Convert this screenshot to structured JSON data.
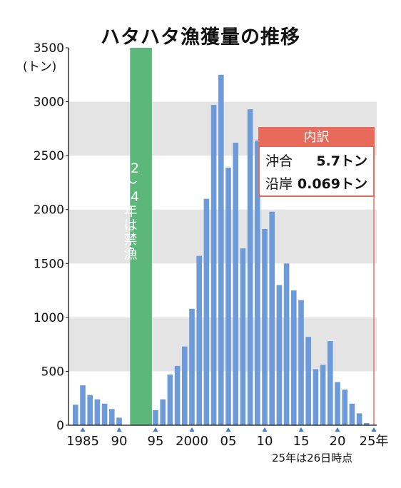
{
  "title": "ハタハタ漁獲量の推移",
  "y_unit": "(トン)",
  "note": "25年は26日時点",
  "ban": {
    "lines": [
      "92",
      "〜",
      "94",
      "年",
      "は",
      "禁",
      "漁"
    ],
    "color": "#5cb87a"
  },
  "breakdown": {
    "header": "内訳",
    "rows": [
      {
        "label": "沖合",
        "value": "5.7トン"
      },
      {
        "label": "沿岸",
        "value": "0.069トン"
      }
    ],
    "color": "#e86a5a"
  },
  "colors": {
    "bar": "#6d9ad8",
    "band": "#e4e4e4",
    "tick_marker": "#3a7bd5"
  },
  "chart_data": {
    "type": "bar",
    "title": "ハタハタ漁獲量の推移",
    "ylabel": "(トン)",
    "ylim": [
      0,
      3500
    ],
    "yticks": [
      0,
      500,
      1000,
      1500,
      2000,
      2500,
      3000,
      3500
    ],
    "x": [
      1984,
      1985,
      1986,
      1987,
      1988,
      1989,
      1990,
      1991,
      1992,
      1993,
      1994,
      1995,
      1996,
      1997,
      1998,
      1999,
      2000,
      2001,
      2002,
      2003,
      2004,
      2005,
      2006,
      2007,
      2008,
      2009,
      2010,
      2011,
      2012,
      2013,
      2014,
      2015,
      2016,
      2017,
      2018,
      2019,
      2020,
      2021,
      2022,
      2023,
      2024,
      2025
    ],
    "values": [
      190,
      370,
      280,
      240,
      200,
      150,
      70,
      null,
      null,
      null,
      null,
      140,
      240,
      470,
      550,
      730,
      1080,
      1570,
      2100,
      2970,
      3250,
      2390,
      2620,
      1640,
      2930,
      2640,
      1820,
      1980,
      1300,
      1500,
      1250,
      1160,
      820,
      520,
      560,
      780,
      400,
      330,
      200,
      110,
      20,
      5.77
    ],
    "xtick_labels": [
      {
        "x": 1985,
        "label": "1985"
      },
      {
        "x": 1990,
        "label": "90"
      },
      {
        "x": 1995,
        "label": "95"
      },
      {
        "x": 2000,
        "label": "2000"
      },
      {
        "x": 2005,
        "label": "05"
      },
      {
        "x": 2010,
        "label": "10"
      },
      {
        "x": 2015,
        "label": "15"
      },
      {
        "x": 2020,
        "label": "20"
      },
      {
        "x": 2025,
        "label": "25年"
      }
    ],
    "ban_period": [
      1992,
      1994
    ],
    "grid": "alternating horizontal bands"
  }
}
